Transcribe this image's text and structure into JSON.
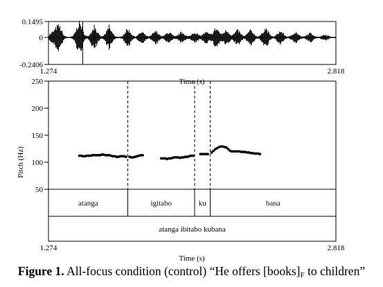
{
  "chart_data": [
    {
      "type": "waveform",
      "y_ticks": [
        "0.1495",
        "0",
        "-0.2406"
      ],
      "x_range": [
        1.274,
        2.818
      ],
      "x_tick_labels": [
        "1.274",
        "2.818"
      ],
      "xlabel": "Time (s)",
      "bursts": [
        {
          "t": 1.294,
          "amp": 0.04
        },
        {
          "t": 1.328,
          "amp": 0.12
        },
        {
          "t": 1.44,
          "amp": 0.15
        },
        {
          "t": 1.52,
          "amp": 0.1
        },
        {
          "t": 1.6,
          "amp": 0.09
        },
        {
          "t": 1.7,
          "amp": 0.08
        },
        {
          "t": 1.775,
          "amp": 0.05
        },
        {
          "t": 1.85,
          "amp": 0.06
        },
        {
          "t": 1.92,
          "amp": 0.05
        },
        {
          "t": 1.99,
          "amp": 0.05
        },
        {
          "t": 2.06,
          "amp": 0.05
        },
        {
          "t": 2.12,
          "amp": 0.05
        },
        {
          "t": 2.175,
          "amp": 0.09
        },
        {
          "t": 2.23,
          "amp": 0.07
        },
        {
          "t": 2.29,
          "amp": 0.07
        },
        {
          "t": 2.36,
          "amp": 0.07
        },
        {
          "t": 2.44,
          "amp": 0.09
        },
        {
          "t": 2.52,
          "amp": 0.06
        },
        {
          "t": 2.6,
          "amp": 0.05
        },
        {
          "t": 2.68,
          "amp": 0.04
        },
        {
          "t": 2.76,
          "amp": 0.025
        }
      ],
      "spikes": [
        {
          "t": 1.458,
          "min": -0.2406,
          "max": 0.1495
        },
        {
          "t": 1.52,
          "min": -0.03,
          "max": 0.12
        },
        {
          "t": 1.6,
          "min": -0.11,
          "max": 0.12
        },
        {
          "t": 1.7,
          "min": -0.07,
          "max": 0.06
        }
      ]
    },
    {
      "type": "scatter",
      "ylabel": "Pitch (Hz)",
      "ylim": [
        50,
        250
      ],
      "y_ticks": [
        50,
        100,
        150,
        200,
        250
      ],
      "x_range": [
        1.274,
        2.818
      ],
      "x_tick_labels": [
        "1.274",
        "2.818"
      ],
      "xlabel": "Time (s)",
      "boundaries": [
        1.7,
        2.059,
        2.143
      ],
      "points": [
        {
          "x": 1.44,
          "y": 112
        },
        {
          "x": 1.45,
          "y": 112
        },
        {
          "x": 1.46,
          "y": 111
        },
        {
          "x": 1.47,
          "y": 111
        },
        {
          "x": 1.48,
          "y": 112
        },
        {
          "x": 1.49,
          "y": 112
        },
        {
          "x": 1.5,
          "y": 112
        },
        {
          "x": 1.51,
          "y": 113
        },
        {
          "x": 1.52,
          "y": 113
        },
        {
          "x": 1.53,
          "y": 113
        },
        {
          "x": 1.54,
          "y": 113
        },
        {
          "x": 1.55,
          "y": 113
        },
        {
          "x": 1.56,
          "y": 114
        },
        {
          "x": 1.57,
          "y": 114
        },
        {
          "x": 1.58,
          "y": 113
        },
        {
          "x": 1.59,
          "y": 113
        },
        {
          "x": 1.6,
          "y": 113
        },
        {
          "x": 1.61,
          "y": 112
        },
        {
          "x": 1.62,
          "y": 111
        },
        {
          "x": 1.63,
          "y": 111
        },
        {
          "x": 1.64,
          "y": 110
        },
        {
          "x": 1.65,
          "y": 110
        },
        {
          "x": 1.66,
          "y": 111
        },
        {
          "x": 1.67,
          "y": 111
        },
        {
          "x": 1.68,
          "y": 111
        },
        {
          "x": 1.69,
          "y": 110
        },
        {
          "x": 1.71,
          "y": 110
        },
        {
          "x": 1.72,
          "y": 109
        },
        {
          "x": 1.73,
          "y": 109
        },
        {
          "x": 1.74,
          "y": 110
        },
        {
          "x": 1.75,
          "y": 111
        },
        {
          "x": 1.76,
          "y": 112
        },
        {
          "x": 1.77,
          "y": 113
        },
        {
          "x": 1.78,
          "y": 113
        },
        {
          "x": 1.88,
          "y": 107
        },
        {
          "x": 1.89,
          "y": 107
        },
        {
          "x": 1.9,
          "y": 107
        },
        {
          "x": 1.91,
          "y": 106
        },
        {
          "x": 1.92,
          "y": 107
        },
        {
          "x": 1.93,
          "y": 107
        },
        {
          "x": 1.94,
          "y": 108
        },
        {
          "x": 1.95,
          "y": 109
        },
        {
          "x": 1.96,
          "y": 109
        },
        {
          "x": 1.97,
          "y": 109
        },
        {
          "x": 1.98,
          "y": 108
        },
        {
          "x": 1.99,
          "y": 109
        },
        {
          "x": 2.0,
          "y": 109
        },
        {
          "x": 2.01,
          "y": 110
        },
        {
          "x": 2.02,
          "y": 110
        },
        {
          "x": 2.03,
          "y": 111
        },
        {
          "x": 2.04,
          "y": 112
        },
        {
          "x": 2.05,
          "y": 112
        },
        {
          "x": 2.09,
          "y": 115
        },
        {
          "x": 2.1,
          "y": 115
        },
        {
          "x": 2.11,
          "y": 115
        },
        {
          "x": 2.12,
          "y": 115
        },
        {
          "x": 2.13,
          "y": 115
        },
        {
          "x": 2.15,
          "y": 118
        },
        {
          "x": 2.16,
          "y": 121
        },
        {
          "x": 2.17,
          "y": 124
        },
        {
          "x": 2.18,
          "y": 126
        },
        {
          "x": 2.19,
          "y": 128
        },
        {
          "x": 2.2,
          "y": 129
        },
        {
          "x": 2.21,
          "y": 129
        },
        {
          "x": 2.22,
          "y": 128
        },
        {
          "x": 2.23,
          "y": 127
        },
        {
          "x": 2.24,
          "y": 124
        },
        {
          "x": 2.25,
          "y": 121
        },
        {
          "x": 2.26,
          "y": 120
        },
        {
          "x": 2.27,
          "y": 120
        },
        {
          "x": 2.28,
          "y": 120
        },
        {
          "x": 2.29,
          "y": 120
        },
        {
          "x": 2.3,
          "y": 120
        },
        {
          "x": 2.31,
          "y": 119
        },
        {
          "x": 2.32,
          "y": 119
        },
        {
          "x": 2.33,
          "y": 119
        },
        {
          "x": 2.34,
          "y": 118
        },
        {
          "x": 2.35,
          "y": 118
        },
        {
          "x": 2.36,
          "y": 117
        },
        {
          "x": 2.37,
          "y": 117
        },
        {
          "x": 2.38,
          "y": 116
        },
        {
          "x": 2.39,
          "y": 116
        },
        {
          "x": 2.4,
          "y": 116
        },
        {
          "x": 2.41,
          "y": 115
        }
      ]
    },
    {
      "type": "table",
      "tiers": [
        {
          "boundaries": [
            1.7,
            2.059,
            2.143
          ],
          "intervals": [
            {
              "label": "atanga",
              "start": 1.274,
              "end": 1.7
            },
            {
              "label": "igitabo",
              "start": 1.7,
              "end": 2.059
            },
            {
              "label": "ku",
              "start": 2.059,
              "end": 2.143
            },
            {
              "label": "bana",
              "start": 2.143,
              "end": 2.818
            }
          ]
        },
        {
          "boundaries": [],
          "intervals": [
            {
              "label": "atanga ibitabo kubana",
              "start": 1.274,
              "end": 2.818
            }
          ]
        }
      ]
    }
  ],
  "caption": {
    "figure_label": "Figure 1.",
    "text_before": " All-focus condition (control) “He offers [books]",
    "focus_subscript": "F",
    "text_after": " to children”"
  }
}
